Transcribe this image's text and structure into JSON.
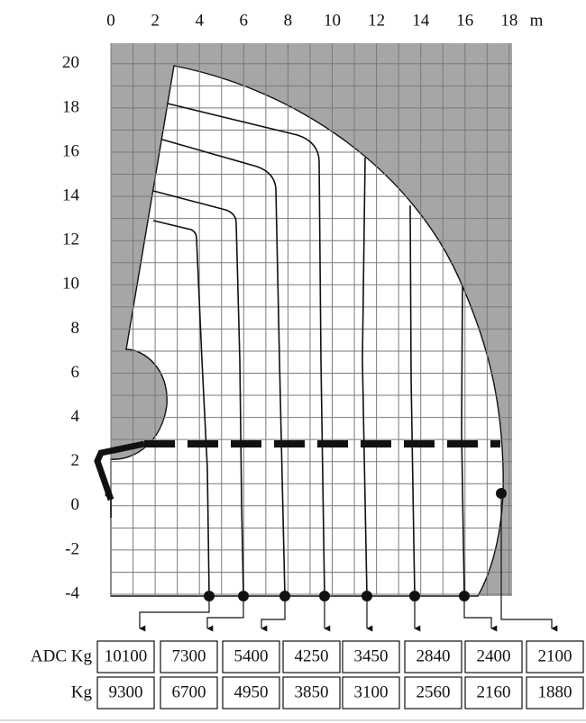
{
  "x_axis": {
    "ticks": [
      0,
      2,
      4,
      6,
      8,
      10,
      12,
      14,
      16,
      18
    ],
    "unit": "m"
  },
  "y_axis": {
    "ticks": [
      20,
      18,
      16,
      14,
      12,
      10,
      8,
      6,
      4,
      2,
      0,
      -2,
      -4
    ]
  },
  "table": {
    "rows": [
      {
        "label": "ADC Kg",
        "values": [
          "10100",
          "7300",
          "5400",
          "4250",
          "3450",
          "2840",
          "2400",
          "2100"
        ]
      },
      {
        "label": "Kg",
        "values": [
          "9300",
          "6700",
          "4950",
          "3850",
          "3100",
          "2560",
          "2160",
          "1880"
        ]
      }
    ]
  }
}
